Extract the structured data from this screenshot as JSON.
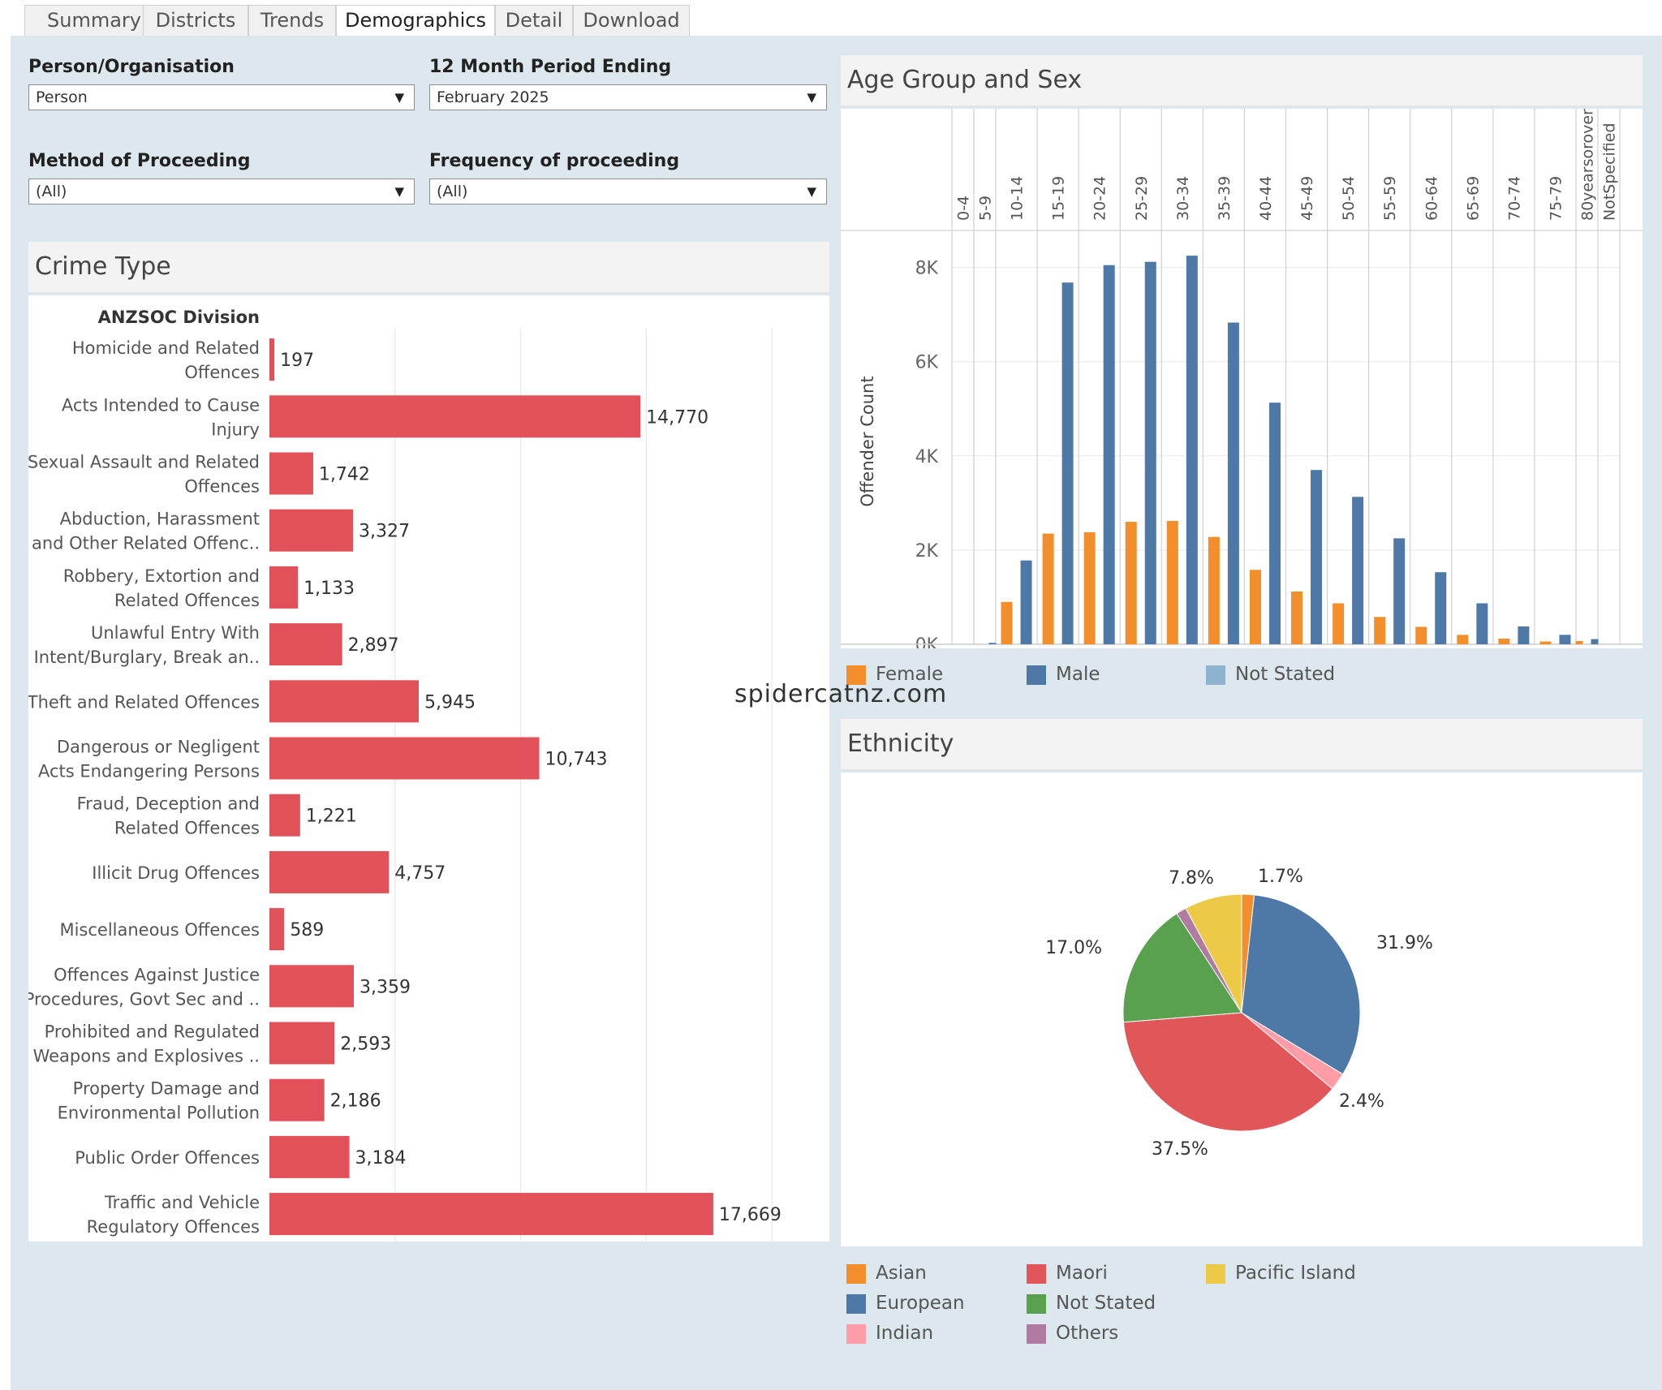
{
  "tabs": [
    {
      "label": "Summary"
    },
    {
      "label": "Districts"
    },
    {
      "label": "Trends"
    },
    {
      "label": "Demographics",
      "active": true
    },
    {
      "label": "Detail"
    },
    {
      "label": "Download"
    }
  ],
  "filters": {
    "person_org": {
      "label": "Person/Organisation",
      "value": "Person"
    },
    "period": {
      "label": "12 Month Period Ending",
      "value": "February 2025"
    },
    "method": {
      "label": "Method of Proceeding",
      "value": "(All)"
    },
    "frequency": {
      "label": "Frequency of proceeding",
      "value": "(All)"
    }
  },
  "crime_panel": {
    "title": "Crime Type"
  },
  "age_panel": {
    "title": "Age Group and Sex"
  },
  "ethnicity_panel": {
    "title": "Ethnicity"
  },
  "watermark": "spidercatnz.com",
  "colors": {
    "bar": "#e05159",
    "female": "#f28e2b",
    "male": "#4e79a7",
    "not_stated": "#8fb2d0"
  },
  "chart_data": [
    {
      "type": "bar",
      "orientation": "horizontal",
      "title": "Crime Type",
      "column_header": "ANZSOC Division",
      "categories": [
        [
          "Homicide and Related",
          "Offences"
        ],
        [
          "Acts Intended to Cause",
          "Injury"
        ],
        [
          "Sexual Assault and Related",
          "Offences"
        ],
        [
          "Abduction, Harassment",
          "and Other Related Offenc.."
        ],
        [
          "Robbery, Extortion and",
          "Related Offences"
        ],
        [
          "Unlawful Entry With",
          "Intent/Burglary, Break an.."
        ],
        [
          "Theft and Related Offences"
        ],
        [
          "Dangerous or Negligent",
          "Acts Endangering Persons"
        ],
        [
          "Fraud, Deception and",
          "Related Offences"
        ],
        [
          "Illicit Drug Offences"
        ],
        [
          "Miscellaneous Offences"
        ],
        [
          "Offences Against Justice",
          "Procedures, Govt Sec and .."
        ],
        [
          "Prohibited and Regulated",
          "Weapons and Explosives .."
        ],
        [
          "Property Damage and",
          "Environmental Pollution"
        ],
        [
          "Public Order Offences"
        ],
        [
          "Traffic and Vehicle",
          "Regulatory Offences"
        ]
      ],
      "values": [
        197,
        14770,
        1742,
        3327,
        1133,
        2897,
        5945,
        10743,
        1221,
        4757,
        589,
        3359,
        2593,
        2186,
        3184,
        17669
      ],
      "value_labels": [
        "197",
        "14,770",
        "1,742",
        "3,327",
        "1,133",
        "2,897",
        "5,945",
        "10,743",
        "1,221",
        "4,757",
        "589",
        "3,359",
        "2,593",
        "2,186",
        "3,184",
        "17,669"
      ],
      "xlim": [
        0,
        21000
      ],
      "grid_step": 5000,
      "grid": true
    },
    {
      "type": "bar",
      "title": "Age Group and Sex",
      "ylabel": "Offender Count",
      "categories": [
        "0-4",
        "5-9",
        "10-14",
        "15-19",
        "20-24",
        "25-29",
        "30-34",
        "35-39",
        "40-44",
        "45-49",
        "50-54",
        "55-59",
        "60-64",
        "65-69",
        "70-74",
        "75-79",
        "80yearsorover",
        "NotSpecified"
      ],
      "series": [
        {
          "name": "Female",
          "values": [
            0,
            0,
            900,
            2350,
            2380,
            2600,
            2620,
            2280,
            1580,
            1120,
            870,
            580,
            370,
            200,
            120,
            60,
            70,
            0
          ]
        },
        {
          "name": "Male",
          "values": [
            0,
            30,
            1780,
            7680,
            8050,
            8120,
            8250,
            6830,
            5130,
            3700,
            3130,
            2250,
            1530,
            870,
            380,
            200,
            110,
            0
          ]
        },
        {
          "name": "Not Stated",
          "values": [
            0,
            0,
            0,
            0,
            0,
            0,
            0,
            0,
            0,
            0,
            0,
            0,
            0,
            0,
            0,
            0,
            0,
            0
          ]
        }
      ],
      "ylim": [
        0,
        8200
      ],
      "yticks": [
        0,
        2000,
        4000,
        6000,
        8000
      ],
      "ytick_labels": [
        "0K",
        "2K",
        "4K",
        "6K",
        "8K"
      ],
      "legend": {
        "position": "bottom",
        "items": [
          "Female",
          "Male",
          "Not Stated"
        ]
      },
      "grid": true
    },
    {
      "type": "pie",
      "title": "Ethnicity",
      "slices": [
        {
          "name": "Asian",
          "value": 1.7,
          "label": "1.7%",
          "color": "#f28e2b"
        },
        {
          "name": "European",
          "value": 31.9,
          "label": "31.9%",
          "color": "#4e79a7"
        },
        {
          "name": "Indian",
          "value": 2.4,
          "label": "2.4%",
          "color": "#ff9da7"
        },
        {
          "name": "Maori",
          "value": 37.5,
          "label": "37.5%",
          "color": "#e15759"
        },
        {
          "name": "Not Stated",
          "value": 17.0,
          "label": "17.0%",
          "color": "#59a14f"
        },
        {
          "name": "Others",
          "value": 1.4,
          "label": "",
          "color": "#b07aa1"
        },
        {
          "name": "Pacific Island",
          "value": 7.8,
          "label": "7.8%",
          "color": "#edc948"
        }
      ],
      "legend": {
        "position": "bottom",
        "order": [
          "Asian",
          "Maori",
          "Pacific Island",
          "European",
          "Not Stated",
          "Indian",
          "Others"
        ]
      }
    }
  ]
}
